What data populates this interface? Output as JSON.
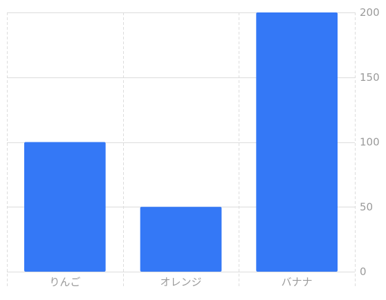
{
  "chart_data": {
    "type": "bar",
    "categories": [
      "りんご",
      "オレンジ",
      "バナナ"
    ],
    "values": [
      100,
      50,
      200
    ],
    "title": "",
    "xlabel": "",
    "ylabel": "",
    "ylim": [
      0,
      200
    ],
    "yticks": [
      0,
      50,
      100,
      150,
      200
    ],
    "y_axis_side": "right",
    "grid": true,
    "legend": "none",
    "colors": {
      "bar": "#3478F6",
      "gridline": "#DCDCDC",
      "tick_label": "#9A9A9A"
    }
  }
}
